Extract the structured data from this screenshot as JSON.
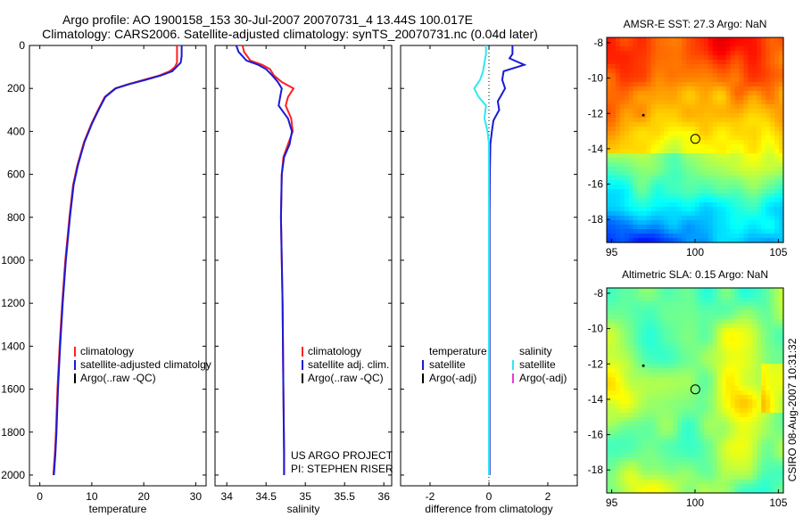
{
  "header": {
    "line1": "Argo profile: AO 1900158_153 30-Jul-2007 20070731_4 13.44S 100.017E",
    "line2": "Climatology: CARS2006. Satellite-adjusted climatology: synTS_20070731.nc (0.04d later)"
  },
  "side_label": "CSIRO 08-Aug-2007 10:31:32",
  "colors": {
    "climatology": "#ff2020",
    "satellite": "#1a1ad6",
    "argo": "#000000",
    "salinity_satellite": "#2ee8f0",
    "salinity_argo_adj": "#e040d0"
  },
  "chart_data": [
    {
      "type": "line",
      "id": "temperature",
      "xlabel": "temperature",
      "ylabel": "",
      "xlim": [
        -2,
        32
      ],
      "ylim": [
        2050,
        0
      ],
      "y_reversed": true,
      "xticks": [
        0,
        10,
        20,
        30
      ],
      "xtick_labels": [
        "0",
        "10",
        "20",
        "30"
      ],
      "yticks": [
        0,
        200,
        400,
        600,
        800,
        1000,
        1200,
        1400,
        1600,
        1800,
        2000
      ],
      "ytick_labels": [
        "0",
        "200",
        "400",
        "600",
        "800",
        "1000",
        "1200",
        "1400",
        "1600",
        "1800",
        "2000"
      ],
      "legend": [
        "climatology",
        "satellite-adjusted climatolgy",
        "Argo(..raw -QC)"
      ],
      "legend_placement": "bottom-right",
      "series": [
        {
          "name": "climatology",
          "color": "#ff2020",
          "x": [
            26.4,
            26.4,
            26.0,
            25.0,
            23.0,
            20.0,
            17.0,
            14.5,
            12.5,
            11.2,
            10.0,
            8.5,
            7.2,
            6.4,
            5.7,
            4.9,
            4.3,
            3.8,
            3.4,
            3.1,
            2.9,
            2.6
          ],
          "y": [
            0,
            80,
            100,
            120,
            140,
            160,
            180,
            200,
            240,
            300,
            360,
            450,
            560,
            650,
            800,
            1000,
            1200,
            1400,
            1600,
            1800,
            1900,
            2000
          ]
        },
        {
          "name": "satellite-adjusted climatolgy",
          "color": "#1a1ad6",
          "x": [
            27.3,
            27.3,
            27.1,
            25.5,
            23.3,
            20.3,
            17.2,
            14.6,
            12.6,
            11.3,
            10.1,
            8.6,
            7.3,
            6.5,
            5.8,
            5.0,
            4.4,
            3.9,
            3.5,
            3.2,
            3.0,
            2.7
          ],
          "y": [
            0,
            50,
            80,
            120,
            140,
            160,
            180,
            200,
            240,
            300,
            360,
            450,
            560,
            650,
            800,
            1000,
            1200,
            1400,
            1600,
            1800,
            1900,
            2000
          ]
        }
      ]
    },
    {
      "type": "line",
      "id": "salinity",
      "xlabel": "salinity",
      "ylabel": "",
      "xlim": [
        33.85,
        36.1
      ],
      "ylim": [
        2050,
        0
      ],
      "y_reversed": true,
      "xticks": [
        34,
        34.5,
        35,
        35.5,
        36
      ],
      "xtick_labels": [
        "34",
        "34.5",
        "35",
        "35.5",
        "36"
      ],
      "legend": [
        "climatology",
        "satellite adj. clim.",
        "Argo(..raw -QC)"
      ],
      "legend_placement": "bottom-right",
      "annotation": [
        "US ARGO PROJECT",
        "PI: STEPHEN RISER"
      ],
      "series": [
        {
          "name": "climatology",
          "color": "#ff2020",
          "x": [
            34.2,
            34.22,
            34.3,
            34.45,
            34.55,
            34.6,
            34.7,
            34.85,
            34.78,
            34.75,
            34.82,
            34.84,
            34.78,
            34.72,
            34.7,
            34.69,
            34.7,
            34.71,
            34.72,
            34.73,
            34.73
          ],
          "y": [
            0,
            30,
            70,
            90,
            110,
            140,
            170,
            200,
            240,
            280,
            340,
            400,
            460,
            520,
            600,
            800,
            1000,
            1200,
            1600,
            1900,
            2000
          ]
        },
        {
          "name": "satellite adj. clim.",
          "color": "#1a1ad6",
          "x": [
            34.12,
            34.15,
            34.25,
            34.4,
            34.5,
            34.58,
            34.65,
            34.7,
            34.68,
            34.66,
            34.78,
            34.83,
            34.8,
            34.73,
            34.7,
            34.69,
            34.7,
            34.71,
            34.72,
            34.73,
            34.73
          ],
          "y": [
            0,
            30,
            70,
            90,
            110,
            140,
            170,
            200,
            240,
            280,
            340,
            400,
            460,
            520,
            600,
            800,
            1000,
            1200,
            1600,
            1900,
            2000
          ]
        }
      ]
    },
    {
      "type": "line",
      "id": "difference",
      "xlabel": "difference from climatology",
      "ylabel": "",
      "xlim": [
        -3.0,
        3.0
      ],
      "ylim": [
        2050,
        0
      ],
      "y_reversed": true,
      "xticks": [
        -2,
        0,
        2
      ],
      "xtick_labels": [
        "-2",
        "0",
        "2"
      ],
      "legend_titles": [
        "temperature",
        "salinity"
      ],
      "legend": [
        "satellite",
        "Argo(-adj)",
        "satellite",
        "Argo(-adj)"
      ],
      "legend_placement": "center-right",
      "series": [
        {
          "name": "satellite",
          "group": "temperature",
          "color": "#1a1ad6",
          "x": [
            0.8,
            0.8,
            0.7,
            1.2,
            0.5,
            0.45,
            0.55,
            0.3,
            0.35,
            0.15,
            0.1,
            0.05,
            0.03,
            0.02,
            0.02,
            0.02,
            0.02,
            0.02,
            0.02
          ],
          "y": [
            0,
            40,
            60,
            90,
            120,
            160,
            200,
            260,
            300,
            350,
            400,
            460,
            600,
            800,
            1000,
            1300,
            1600,
            1900,
            2000
          ]
        },
        {
          "name": "satellite",
          "group": "salinity",
          "color": "#2ee8f0",
          "x": [
            -0.1,
            -0.1,
            -0.15,
            -0.2,
            -0.3,
            -0.5,
            -0.35,
            -0.1,
            -0.15,
            -0.05,
            0,
            0,
            0,
            0,
            0,
            0,
            0
          ],
          "y": [
            0,
            40,
            80,
            120,
            160,
            200,
            240,
            280,
            340,
            400,
            460,
            600,
            800,
            1000,
            1400,
            1800,
            2000
          ]
        }
      ]
    },
    {
      "type": "heatmap",
      "id": "sst-map",
      "title": "AMSR-E SST: 27.3 Argo: NaN",
      "xlim": [
        94.7,
        105.3
      ],
      "ylim": [
        -19.3,
        -7.7
      ],
      "xticks": [
        95,
        100,
        105
      ],
      "xtick_labels": [
        "95",
        "100",
        "105"
      ],
      "yticks": [
        -8,
        -10,
        -12,
        -14,
        -16,
        -18
      ],
      "ytick_labels": [
        "-8",
        "-10",
        "-12",
        "-14",
        "-16",
        "-18"
      ],
      "marker": {
        "lon": 100.017,
        "lat": -13.44
      },
      "dot": {
        "lon": 96.9,
        "lat": -12.1
      }
    },
    {
      "type": "heatmap",
      "id": "sla-map",
      "title": "Altimetric SLA: 0.15 Argo: NaN",
      "xlim": [
        94.7,
        105.3
      ],
      "ylim": [
        -19.3,
        -7.7
      ],
      "xticks": [
        95,
        100,
        105
      ],
      "xtick_labels": [
        "95",
        "100",
        "105"
      ],
      "yticks": [
        -8,
        -10,
        -12,
        -14,
        -16,
        -18
      ],
      "ytick_labels": [
        "-8",
        "-10",
        "-12",
        "-14",
        "-16",
        "-18"
      ],
      "marker": {
        "lon": 100.017,
        "lat": -13.44
      },
      "dot": {
        "lon": 96.9,
        "lat": -12.1
      }
    }
  ]
}
